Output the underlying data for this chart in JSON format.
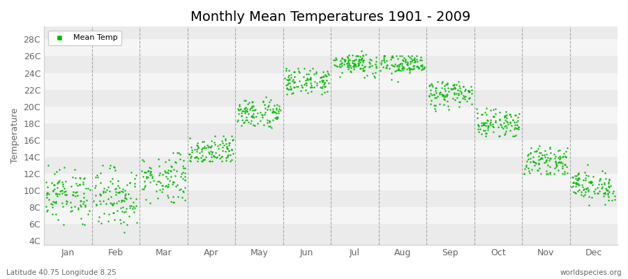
{
  "title": "Monthly Mean Temperatures 1901 - 2009",
  "ylabel": "Temperature",
  "xlabel": "",
  "subtitle_left": "Latitude 40.75 Longitude 8.25",
  "subtitle_right": "worldspecies.org",
  "legend_label": "Mean Temp",
  "dot_color": "#00bb00",
  "dot_size": 3,
  "bg_color": "#ffffff",
  "band_color_odd": "#ebebeb",
  "band_color_even": "#f5f5f5",
  "grid_line_color": "#ffffff",
  "dashed_line_color": "#888888",
  "ytick_labels": [
    "4C",
    "6C",
    "8C",
    "10C",
    "12C",
    "14C",
    "16C",
    "18C",
    "20C",
    "22C",
    "24C",
    "26C",
    "28C"
  ],
  "ytick_values": [
    4,
    6,
    8,
    10,
    12,
    14,
    16,
    18,
    20,
    22,
    24,
    26,
    28
  ],
  "ylim": [
    3.5,
    29.5
  ],
  "months": [
    "Jan",
    "Feb",
    "Mar",
    "Apr",
    "May",
    "Jun",
    "Jul",
    "Aug",
    "Sep",
    "Oct",
    "Nov",
    "Dec"
  ],
  "title_fontsize": 14,
  "monthly_mean": [
    9.5,
    9.2,
    11.5,
    14.8,
    19.2,
    23.0,
    25.2,
    25.0,
    21.5,
    18.0,
    13.5,
    10.5
  ],
  "monthly_std": [
    1.5,
    1.8,
    1.5,
    0.9,
    0.9,
    0.8,
    0.7,
    0.7,
    0.8,
    0.8,
    0.8,
    0.9
  ],
  "monthly_min": [
    5.5,
    5.0,
    8.5,
    13.5,
    17.5,
    21.5,
    23.5,
    23.0,
    19.5,
    16.5,
    12.0,
    8.0
  ],
  "monthly_max": [
    13.0,
    13.0,
    14.5,
    16.5,
    21.5,
    24.5,
    26.8,
    26.0,
    23.0,
    20.5,
    16.0,
    13.5
  ],
  "n_years": 109
}
